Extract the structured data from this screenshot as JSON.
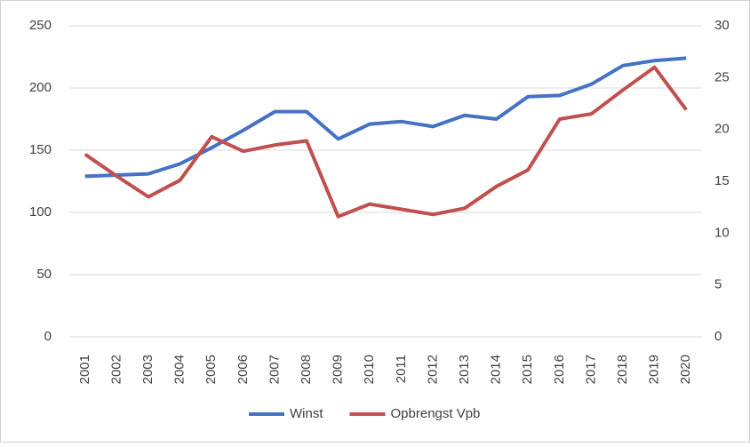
{
  "chart_data": {
    "type": "line",
    "categories": [
      "2001",
      "2002",
      "2003",
      "2004",
      "2005",
      "2006",
      "2007",
      "2008",
      "2009",
      "2010",
      "2011",
      "2012",
      "2013",
      "2014",
      "2015",
      "2016",
      "2017",
      "2018",
      "2019",
      "2020"
    ],
    "series": [
      {
        "name": "Winst",
        "color": "#4472c4",
        "values": [
          129,
          130,
          131,
          139,
          152,
          166,
          181,
          181,
          159,
          171,
          173,
          169,
          178,
          175,
          193,
          194,
          203,
          218,
          222,
          224
        ]
      },
      {
        "name": "Opbrengst Vpb",
        "color": "#c0504d",
        "axis": "y2",
        "values": [
          17.6,
          15.5,
          13.5,
          15.1,
          19.3,
          17.9,
          18.5,
          18.9,
          11.6,
          12.8,
          12.3,
          11.8,
          12.4,
          14.5,
          16.1,
          21.0,
          21.5,
          23.8,
          26.0,
          21.9
        ]
      }
    ],
    "ylim": [
      0,
      250
    ],
    "yticks": [
      0,
      50,
      100,
      150,
      200,
      250
    ],
    "y2lim": [
      0,
      30
    ],
    "y2ticks": [
      0,
      5,
      10,
      15,
      20,
      25,
      30
    ],
    "grid": true,
    "legend": "bottom"
  }
}
